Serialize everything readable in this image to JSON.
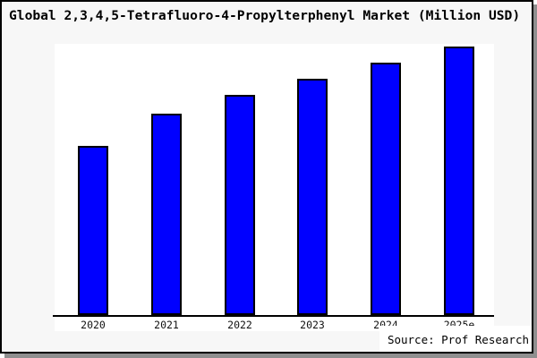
{
  "chart_data": {
    "type": "bar",
    "title": "Global 2,3,4,5-Tetrafluoro-4-Propylterphenyl Market (Million USD)",
    "categories": [
      "2020",
      "2021",
      "2022",
      "2023",
      "2024",
      "2025e"
    ],
    "values": [
      63,
      75,
      82,
      88,
      94,
      100
    ],
    "values_unit": "relative index (no y-axis values shown; 2025e = 100)",
    "xlabel": "",
    "ylabel": "",
    "ylim": [
      0,
      101
    ],
    "grid": false,
    "legend": false
  },
  "footer": {
    "source_label": "Source: Prof Research"
  },
  "colors": {
    "bar_fill": "#0000ff",
    "bar_border": "#000000",
    "plot_bg": "#ffffff",
    "panel_bg": "#f7f7f7",
    "frame_border": "#000000",
    "shadow": "#8f8f8f",
    "text": "#000000"
  }
}
